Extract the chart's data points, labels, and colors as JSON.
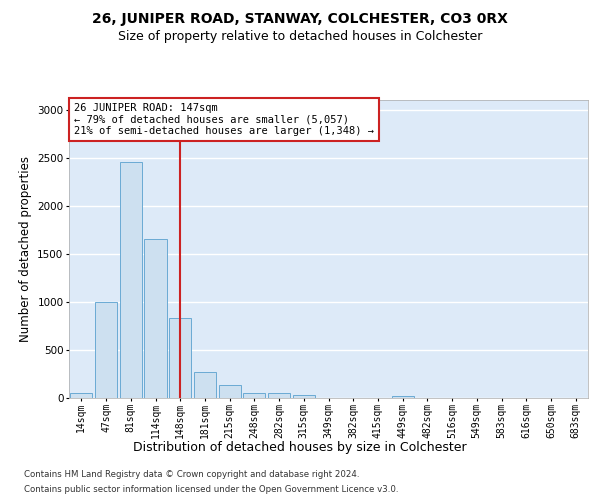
{
  "title1": "26, JUNIPER ROAD, STANWAY, COLCHESTER, CO3 0RX",
  "title2": "Size of property relative to detached houses in Colchester",
  "xlabel": "Distribution of detached houses by size in Colchester",
  "ylabel": "Number of detached properties",
  "footer1": "Contains HM Land Registry data © Crown copyright and database right 2024.",
  "footer2": "Contains public sector information licensed under the Open Government Licence v3.0.",
  "bar_labels": [
    "14sqm",
    "47sqm",
    "81sqm",
    "114sqm",
    "148sqm",
    "181sqm",
    "215sqm",
    "248sqm",
    "282sqm",
    "315sqm",
    "349sqm",
    "382sqm",
    "415sqm",
    "449sqm",
    "482sqm",
    "516sqm",
    "549sqm",
    "583sqm",
    "616sqm",
    "650sqm",
    "683sqm"
  ],
  "bar_values": [
    50,
    990,
    2450,
    1650,
    830,
    265,
    130,
    45,
    45,
    30,
    0,
    0,
    0,
    20,
    0,
    0,
    0,
    0,
    0,
    0,
    0
  ],
  "bar_color": "#cde0f0",
  "bar_edge_color": "#6aaad4",
  "annotation_text": "26 JUNIPER ROAD: 147sqm\n← 79% of detached houses are smaller (5,057)\n21% of semi-detached houses are larger (1,348) →",
  "vline_x": 4.0,
  "vline_color": "#cc2222",
  "annotation_box_color": "#ffffff",
  "annotation_box_edge": "#cc2222",
  "ylim": [
    0,
    3100
  ],
  "fig_background": "#ffffff",
  "plot_background": "#ddeaf8",
  "grid_color": "#ffffff",
  "title1_fontsize": 10,
  "title2_fontsize": 9,
  "axis_label_fontsize": 8.5,
  "tick_fontsize": 7
}
